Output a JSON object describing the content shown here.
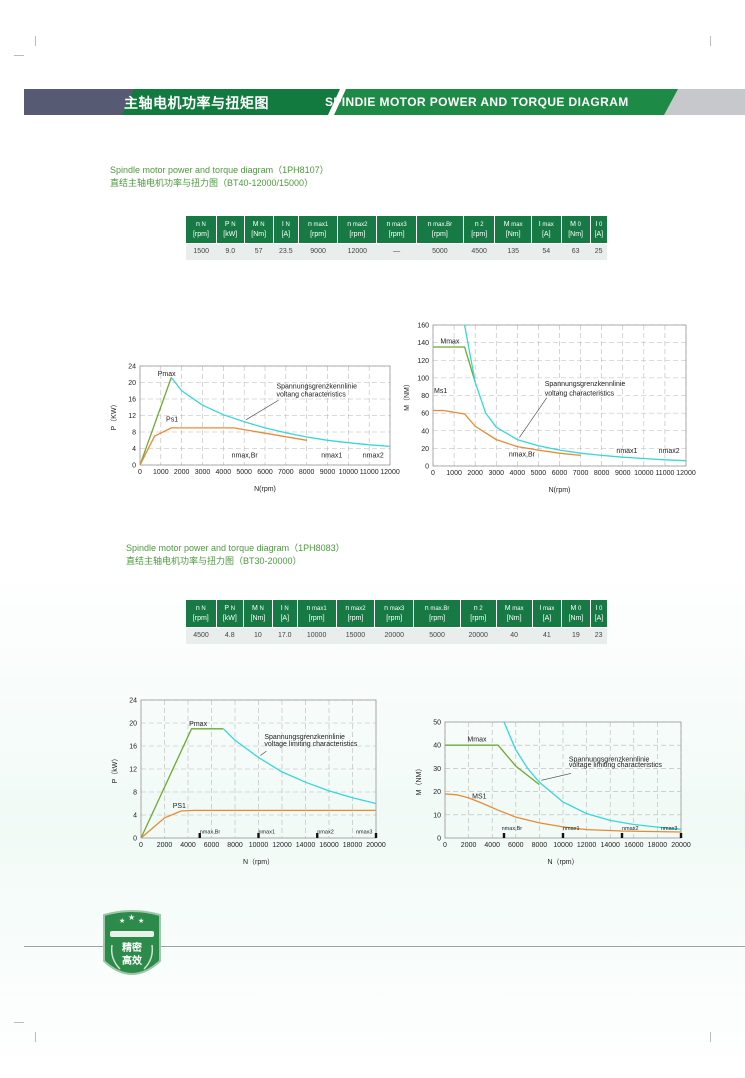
{
  "header": {
    "title_cn": "主轴电机功率与扭矩图",
    "title_en": "SPINDIE MOTOR POWER AND TORQUE DIAGRAM"
  },
  "colors": {
    "header_green": "#127a3e",
    "header_grey": "#565a72",
    "caption_green": "#4c9a3c",
    "table_header": "#177a44",
    "power_line": "#6fa832",
    "limit_curve": "#38d6d8",
    "rated_line": "#e58b36"
  },
  "section1": {
    "caption_en": "Spindle motor power and torque diagram（1PH8107）",
    "caption_cn": "直结主轴电机功率与扭力图（BT40-12000/15000）",
    "table": {
      "headers": [
        {
          "sym": "n",
          "sub": "N",
          "unit": "[rpm]"
        },
        {
          "sym": "P",
          "sub": "N",
          "unit": "[kW]"
        },
        {
          "sym": "M",
          "sub": "N",
          "unit": "[Nm]"
        },
        {
          "sym": "I",
          "sub": "N",
          "unit": "[A]"
        },
        {
          "sym": "n",
          "sub": "max1",
          "unit": "[rpm]"
        },
        {
          "sym": "n",
          "sub": "max2",
          "unit": "[rpm]"
        },
        {
          "sym": "n",
          "sub": "max3",
          "unit": "[rpm]"
        },
        {
          "sym": "n",
          "sub": "max.Br",
          "unit": "[rpm]"
        },
        {
          "sym": "n",
          "sub": "2",
          "unit": "[rpm]"
        },
        {
          "sym": "M",
          "sub": "max",
          "unit": "[Nm]"
        },
        {
          "sym": "I",
          "sub": "max",
          "unit": "[A]"
        },
        {
          "sym": "M",
          "sub": "0",
          "unit": "[Nm]"
        },
        {
          "sym": "I",
          "sub": "0",
          "unit": "[A]"
        }
      ],
      "values": [
        "1500",
        "9.0",
        "57",
        "23.5",
        "9000",
        "12000",
        "—",
        "5000",
        "4500",
        "135",
        "54",
        "63",
        "25"
      ]
    }
  },
  "section2": {
    "caption_en": "Spindle motor power and torque diagram（1PH8083）",
    "caption_cn": "直结主轴电机功率与扭力图（BT30-20000）",
    "table": {
      "headers": [
        {
          "sym": "n",
          "sub": "N",
          "unit": "[rpm]"
        },
        {
          "sym": "P",
          "sub": "N",
          "unit": "[kW]"
        },
        {
          "sym": "M",
          "sub": "N",
          "unit": "[Nm]"
        },
        {
          "sym": "I",
          "sub": "N",
          "unit": "[A]"
        },
        {
          "sym": "n",
          "sub": "max1",
          "unit": "[rpm]"
        },
        {
          "sym": "n",
          "sub": "max2",
          "unit": "[rpm]"
        },
        {
          "sym": "n",
          "sub": "max3",
          "unit": "[rpm]"
        },
        {
          "sym": "n",
          "sub": "max.Br",
          "unit": "[rpm]"
        },
        {
          "sym": "n",
          "sub": "2",
          "unit": "[rpm]"
        },
        {
          "sym": "M",
          "sub": "max",
          "unit": "[Nm]"
        },
        {
          "sym": "I",
          "sub": "max",
          "unit": "[A]"
        },
        {
          "sym": "M",
          "sub": "0",
          "unit": "[Nm]"
        },
        {
          "sym": "I",
          "sub": "0",
          "unit": "[A]"
        }
      ],
      "values": [
        "4500",
        "4.8",
        "10",
        "17.0",
        "10000",
        "15000",
        "20000",
        "5000",
        "20000",
        "40",
        "41",
        "19",
        "23"
      ]
    }
  },
  "badge": {
    "line1": "精密",
    "line2": "高效"
  },
  "chart_data": [
    {
      "type": "line",
      "xlabel": "N(rpm)",
      "ylabel": "P（KW）",
      "xlim": [
        0,
        12000
      ],
      "ylim": [
        0,
        24
      ],
      "xticks": [
        "0",
        "1000",
        "2000",
        "3000",
        "4000",
        "5000",
        "6000",
        "7000",
        "8000",
        "9000",
        "10000",
        "11000",
        "12000"
      ],
      "yticks": [
        "0",
        "4",
        "8",
        "12",
        "16",
        "20",
        "24"
      ],
      "tick_rows": [
        {
          "label": "0",
          "value": 0
        },
        {
          "label": "1000",
          "value": 1000
        },
        {
          "label": "2000",
          "value": 2000
        },
        {
          "label": "3000",
          "value": 3000
        },
        {
          "label": "4000",
          "value": 4000
        },
        {
          "label": "5000",
          "value": 5000
        },
        {
          "label": "6000",
          "value": 6000
        },
        {
          "label": "7000",
          "value": 7000
        },
        {
          "label": "8000",
          "value": 8000
        },
        {
          "label": "9000",
          "value": 9000
        },
        {
          "label": "10000",
          "value": 10000
        },
        {
          "label": "11000",
          "value": 11000
        },
        {
          "label": "12000",
          "value": 12000
        }
      ],
      "grid": true,
      "series": [
        {
          "name": "Pmax",
          "color": "#6fa832",
          "x": [
            0,
            1500
          ],
          "y": [
            0,
            21.2
          ]
        },
        {
          "name": "Ps1",
          "color": "#e58b36",
          "x": [
            0,
            700,
            1500,
            4500,
            8000
          ],
          "y": [
            0,
            7,
            9,
            9,
            6
          ]
        },
        {
          "color": "#38d6d8",
          "x": [
            1500,
            2000,
            3000,
            4000,
            5000,
            6000,
            7000,
            8000,
            9000,
            10000,
            11000,
            12000
          ],
          "y": [
            21.2,
            18,
            14.5,
            12.2,
            10.5,
            9,
            7.8,
            6.8,
            6,
            5.4,
            4.9,
            4.5
          ]
        }
      ],
      "annotations": [
        {
          "text": "Pmax",
          "x": 850,
          "y": 21.6
        },
        {
          "text": "Ps1",
          "x": 1250,
          "y": 10.5
        },
        {
          "text": "Spannungsgrenzkennlinie",
          "x": 6550,
          "y": 18.6
        },
        {
          "text": "voltang characteristics",
          "x": 6550,
          "y": 16.6
        },
        {
          "text": "nmax,Br",
          "x": 4400,
          "y": 1.8
        },
        {
          "text": "nmax1",
          "x": 8700,
          "y": 1.8
        },
        {
          "text": "nmax2",
          "x": 11700,
          "y": 1.8
        }
      ]
    },
    {
      "type": "line",
      "xlabel": "N(rpm)",
      "ylabel": "M（NM）",
      "xlim": [
        0,
        12000
      ],
      "ylim": [
        0,
        160
      ],
      "xticks": [
        "0",
        "1000",
        "2000",
        "3000",
        "4000",
        "5000",
        "6000",
        "7000",
        "8000",
        "9000",
        "10000",
        "11000",
        "12000"
      ],
      "yticks": [
        "0",
        "20",
        "40",
        "60",
        "80",
        "100",
        "120",
        "140",
        "160"
      ],
      "tick_rows": [
        {
          "label": "0",
          "value": 0
        },
        {
          "label": "1000",
          "value": 1000
        },
        {
          "label": "2000",
          "value": 2000
        },
        {
          "label": "3000",
          "value": 3000
        },
        {
          "label": "4000",
          "value": 4000
        },
        {
          "label": "5000",
          "value": 5000
        },
        {
          "label": "6000",
          "value": 6000
        },
        {
          "label": "7000",
          "value": 7000
        },
        {
          "label": "8000",
          "value": 8000
        },
        {
          "label": "9000",
          "value": 9000
        },
        {
          "label": "10000",
          "value": 10000
        },
        {
          "label": "11000",
          "value": 11000
        },
        {
          "label": "12000",
          "value": 12000
        }
      ],
      "grid": true,
      "series": [
        {
          "name": "Mmax",
          "color": "#6fa832",
          "x": [
            0,
            1500,
            2000
          ],
          "y": [
            135,
            135,
            95
          ]
        },
        {
          "name": "Ms1",
          "color": "#e58b36",
          "x": [
            0,
            500,
            1500,
            2000,
            3000,
            4000,
            5000,
            6000,
            7000
          ],
          "y": [
            63,
            63,
            59,
            45,
            30,
            22,
            18,
            14.5,
            12
          ]
        },
        {
          "color": "#38d6d8",
          "x": [
            1500,
            2000,
            2500,
            3000,
            4000,
            5000,
            6000,
            7000,
            8000,
            9000,
            10000,
            11000,
            12000
          ],
          "y": [
            160,
            95,
            60,
            44,
            30,
            23,
            18,
            14.5,
            12,
            10,
            8.5,
            7,
            6
          ]
        }
      ],
      "annotations": [
        {
          "text": "Mmax",
          "x": 350,
          "y": 139
        },
        {
          "text": "Ms1",
          "x": 50,
          "y": 83
        },
        {
          "text": "Spannungsgrenzkennlinie",
          "x": 5300,
          "y": 91
        },
        {
          "text": "voltang characteristics",
          "x": 5300,
          "y": 80
        },
        {
          "text": "nmax,Br",
          "x": 3600,
          "y": 11
        },
        {
          "text": "nmax1",
          "x": 8700,
          "y": 15
        },
        {
          "text": "nmax2",
          "x": 11700,
          "y": 15
        }
      ]
    },
    {
      "type": "line",
      "xlabel": "N（rpm）",
      "ylabel": "P（kW）",
      "xlim": [
        0,
        20000
      ],
      "ylim": [
        0,
        24
      ],
      "xticks": [
        "0",
        "2000",
        "4000",
        "6000",
        "8000",
        "10000",
        "12000",
        "14000",
        "16000",
        "18000",
        "20000"
      ],
      "yticks": [
        "0",
        "4",
        "8",
        "12",
        "16",
        "20",
        "24"
      ],
      "tick_rows": [
        {
          "label": "0",
          "value": 0
        },
        {
          "label": "2000",
          "value": 2000
        },
        {
          "label": "4000",
          "value": 4000
        },
        {
          "label": "6000",
          "value": 6000
        },
        {
          "label": "8000",
          "value": 8000
        },
        {
          "label": "10000",
          "value": 10000
        },
        {
          "label": "12000",
          "value": 12000
        },
        {
          "label": "14000",
          "value": 14000
        },
        {
          "label": "16000",
          "value": 16000
        },
        {
          "label": "18000",
          "value": 18000
        },
        {
          "label": "20000",
          "value": 20000
        }
      ],
      "grid": true,
      "series": [
        {
          "name": "Pmax",
          "color": "#6fa832",
          "x": [
            0,
            4300,
            7000
          ],
          "y": [
            0,
            19,
            19
          ]
        },
        {
          "name": "PS1",
          "color": "#e58b36",
          "x": [
            0,
            2000,
            3400,
            4500,
            20000
          ],
          "y": [
            0,
            3.5,
            4.7,
            4.8,
            4.8
          ]
        },
        {
          "color": "#38d6d8",
          "x": [
            7000,
            8000,
            10000,
            12000,
            14000,
            16000,
            18000,
            20000
          ],
          "y": [
            19,
            17,
            14,
            11.5,
            9.7,
            8.2,
            7,
            6
          ]
        }
      ],
      "annotations": [
        {
          "text": "Pmax",
          "x": 4100,
          "y": 19.5
        },
        {
          "text": "PS1",
          "x": 2700,
          "y": 5.2
        },
        {
          "text": "Spannungsgrenzkennlinie",
          "x": 10500,
          "y": 17.2
        },
        {
          "text": "voltage limiting characteristics",
          "x": 10500,
          "y": 16.0
        },
        {
          "text": "nmax,Br",
          "x": 5000,
          "y": 0.8,
          "small": true
        },
        {
          "text": "nmax1",
          "x": 10000,
          "y": 0.8,
          "small": true
        },
        {
          "text": "nmax2",
          "x": 15000,
          "y": 0.8,
          "small": true
        },
        {
          "text": "nmax3",
          "x": 19700,
          "y": 0.8,
          "small": true
        }
      ],
      "markers": [
        5000,
        10000,
        15000,
        20000
      ]
    },
    {
      "type": "line",
      "xlabel": "N（rpm）",
      "ylabel": "M（NM）",
      "xlim": [
        0,
        20000
      ],
      "ylim": [
        0,
        50
      ],
      "xticks": [
        "0",
        "2000",
        "4000",
        "6000",
        "8000",
        "10000",
        "12000",
        "14000",
        "16000",
        "18000",
        "20000"
      ],
      "yticks": [
        "0",
        "10",
        "20",
        "30",
        "40",
        "50"
      ],
      "tick_rows": [
        {
          "label": "0",
          "value": 0
        },
        {
          "label": "2000",
          "value": 2000
        },
        {
          "label": "4000",
          "value": 4000
        },
        {
          "label": "6000",
          "value": 6000
        },
        {
          "label": "8000",
          "value": 8000
        },
        {
          "label": "10000",
          "value": 10000
        },
        {
          "label": "12000",
          "value": 12000
        },
        {
          "label": "14000",
          "value": 14000
        },
        {
          "label": "16000",
          "value": 16000
        },
        {
          "label": "18000",
          "value": 18000
        },
        {
          "label": "20000",
          "value": 20000
        }
      ],
      "grid": true,
      "series": [
        {
          "name": "Mmax",
          "color": "#6fa832",
          "x": [
            0,
            4500,
            6000,
            8000
          ],
          "y": [
            40,
            40,
            31,
            23
          ]
        },
        {
          "name": "MS1",
          "color": "#e58b36",
          "x": [
            0,
            1000,
            2000,
            3000,
            4500,
            6000,
            8000,
            10000,
            12000,
            15000,
            20000
          ],
          "y": [
            19,
            18.6,
            17.3,
            15.3,
            12,
            9,
            6.5,
            4.8,
            3.6,
            3,
            2.6
          ]
        },
        {
          "color": "#38d6d8",
          "x": [
            5000,
            6000,
            7000,
            8000,
            10000,
            12000,
            14000,
            16000,
            18000,
            20000
          ],
          "y": [
            50,
            38,
            30,
            24,
            15.5,
            10.5,
            7.6,
            5.8,
            4.7,
            3.8
          ]
        }
      ],
      "annotations": [
        {
          "text": "Mmax",
          "x": 1900,
          "y": 41.5
        },
        {
          "text": "MS1",
          "x": 2300,
          "y": 17
        },
        {
          "text": "Spannungsgrenzkennlinie",
          "x": 10500,
          "y": 33
        },
        {
          "text": "voltage limiting characteristics",
          "x": 10500,
          "y": 30.5
        },
        {
          "text": "nmax,Br",
          "x": 4800,
          "y": 3.4,
          "small": true
        },
        {
          "text": "nmax1",
          "x": 10000,
          "y": 3.4,
          "small": true
        },
        {
          "text": "nmax2",
          "x": 15000,
          "y": 3.4,
          "small": true
        },
        {
          "text": "nmax3",
          "x": 19700,
          "y": 3.4,
          "small": true
        }
      ],
      "markers": [
        5000,
        10000,
        15000,
        20000
      ]
    }
  ]
}
